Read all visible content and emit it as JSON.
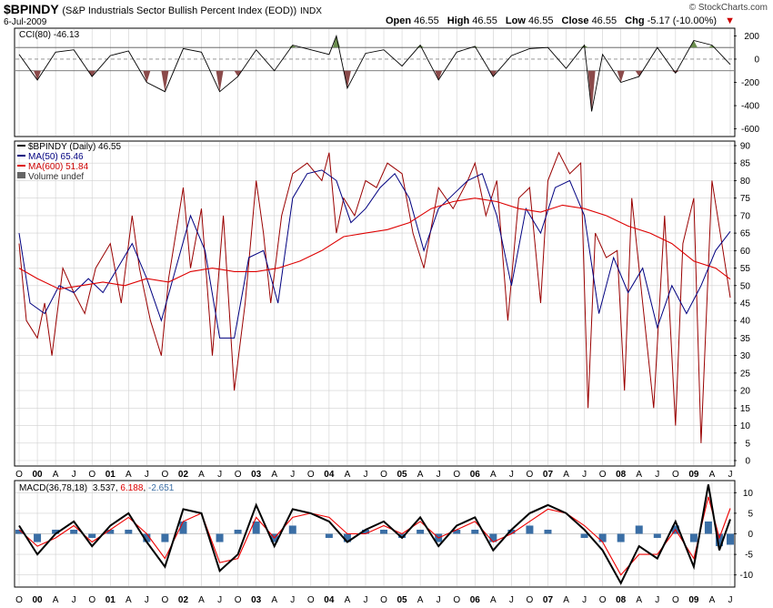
{
  "header": {
    "symbol": "$BPINDY",
    "description": "(S&P Industrials Sector Bullish Percent Index (EOD))",
    "exchange": "INDX",
    "date": "6-Jul-2009",
    "watermark": "© StockCharts.com",
    "open_label": "Open",
    "open": "46.55",
    "high_label": "High",
    "high": "46.55",
    "low_label": "Low",
    "low": "46.55",
    "close_label": "Close",
    "close": "46.55",
    "chg_label": "Chg",
    "chg": "-5.17 (-10.00%)",
    "chg_arrow": "▼"
  },
  "legends": {
    "cci": "CCI(80) -46.13",
    "price": "$BPINDY (Daily) 46.55",
    "ma50": "MA(50) 65.46",
    "ma600": "MA(600) 51.84",
    "volume": "Volume undef",
    "macd_name": "MACD(36,78,18)",
    "macd_val": "3.537",
    "macd_signal": "6.188",
    "macd_hist": "-2.651"
  },
  "colors": {
    "price": "#990000",
    "ma50": "#000080",
    "ma600": "#dd0000",
    "cci_line": "#000000",
    "cci_pos_fill": "#6b8e4e",
    "cci_neg_fill": "#8b4a4a",
    "macd_line": "#000000",
    "macd_signal": "#ee0000",
    "macd_hist": "#3a6ea5",
    "grid": "#d0d0d0"
  },
  "chart_data": [
    {
      "type": "line",
      "panel": "cci",
      "title": "CCI(80) -46.13",
      "y_ticks": [
        200,
        0,
        -200,
        -400,
        -600
      ],
      "ylim": [
        -650,
        250
      ],
      "reference_lines": [
        100,
        0,
        -100
      ],
      "x": [
        1999.75,
        2000.0,
        2000.25,
        2000.5,
        2000.75,
        2001.0,
        2001.25,
        2001.5,
        2001.75,
        2002.0,
        2002.25,
        2002.5,
        2002.75,
        2003.0,
        2003.25,
        2003.5,
        2003.75,
        2004.0,
        2004.1,
        2004.25,
        2004.5,
        2004.75,
        2005.0,
        2005.25,
        2005.5,
        2005.75,
        2006.0,
        2006.25,
        2006.5,
        2006.75,
        2007.0,
        2007.25,
        2007.5,
        2007.6,
        2007.75,
        2008.0,
        2008.25,
        2008.5,
        2008.75,
        2009.0,
        2009.25,
        2009.5
      ],
      "values": [
        40,
        -180,
        60,
        80,
        -150,
        30,
        70,
        -200,
        -280,
        90,
        60,
        -280,
        -150,
        80,
        -100,
        120,
        80,
        40,
        200,
        -250,
        50,
        80,
        -60,
        120,
        -180,
        60,
        110,
        -150,
        30,
        90,
        100,
        -80,
        120,
        -450,
        40,
        -200,
        -150,
        100,
        -120,
        160,
        120,
        -46
      ]
    },
    {
      "type": "line",
      "panel": "price",
      "title": "$BPINDY (Daily) 46.55",
      "y_ticks": [
        0,
        5,
        10,
        15,
        20,
        25,
        30,
        35,
        40,
        45,
        50,
        55,
        60,
        65,
        70,
        75,
        80,
        85,
        90
      ],
      "ylim": [
        0,
        90
      ],
      "x_tick_labels": [
        "O",
        "00",
        "A",
        "J",
        "O",
        "01",
        "A",
        "J",
        "O",
        "02",
        "A",
        "J",
        "O",
        "03",
        "A",
        "J",
        "O",
        "04",
        "A",
        "J",
        "O",
        "05",
        "A",
        "J",
        "O",
        "06",
        "A",
        "J",
        "O",
        "07",
        "A",
        "J",
        "O",
        "08",
        "A",
        "J",
        "O",
        "09",
        "A",
        "J"
      ],
      "xlim": [
        1999.7,
        2009.55
      ],
      "series": [
        {
          "name": "$BPINDY",
          "x": [
            1999.75,
            1999.85,
            2000.0,
            2000.1,
            2000.2,
            2000.35,
            2000.5,
            2000.65,
            2000.8,
            2001.0,
            2001.15,
            2001.3,
            2001.4,
            2001.55,
            2001.7,
            2001.8,
            2002.0,
            2002.1,
            2002.25,
            2002.4,
            2002.55,
            2002.7,
            2002.85,
            2003.0,
            2003.1,
            2003.2,
            2003.35,
            2003.5,
            2003.7,
            2003.9,
            2004.0,
            2004.1,
            2004.2,
            2004.35,
            2004.5,
            2004.65,
            2004.8,
            2005.0,
            2005.15,
            2005.3,
            2005.5,
            2005.7,
            2005.9,
            2006.0,
            2006.15,
            2006.3,
            2006.45,
            2006.6,
            2006.75,
            2006.9,
            2007.0,
            2007.15,
            2007.3,
            2007.45,
            2007.55,
            2007.65,
            2007.8,
            2007.95,
            2008.05,
            2008.15,
            2008.3,
            2008.45,
            2008.6,
            2008.75,
            2008.85,
            2009.0,
            2009.1,
            2009.25,
            2009.4,
            2009.5
          ],
          "values": [
            62,
            40,
            35,
            45,
            30,
            55,
            48,
            42,
            55,
            62,
            45,
            70,
            55,
            40,
            30,
            52,
            78,
            55,
            72,
            30,
            70,
            20,
            45,
            80,
            65,
            45,
            70,
            82,
            85,
            80,
            88,
            65,
            75,
            70,
            80,
            78,
            85,
            82,
            65,
            55,
            78,
            72,
            80,
            85,
            70,
            80,
            40,
            75,
            78,
            45,
            80,
            88,
            82,
            85,
            15,
            65,
            58,
            60,
            20,
            75,
            45,
            15,
            70,
            10,
            62,
            75,
            5,
            80,
            60,
            46.55
          ]
        },
        {
          "name": "MA(50)",
          "x": [
            1999.75,
            1999.9,
            2000.1,
            2000.3,
            2000.5,
            2000.7,
            2000.9,
            2001.1,
            2001.3,
            2001.5,
            2001.7,
            2001.9,
            2002.1,
            2002.3,
            2002.5,
            2002.7,
            2002.9,
            2003.1,
            2003.3,
            2003.5,
            2003.7,
            2003.9,
            2004.1,
            2004.3,
            2004.5,
            2004.7,
            2004.9,
            2005.1,
            2005.3,
            2005.5,
            2005.7,
            2005.9,
            2006.1,
            2006.3,
            2006.5,
            2006.7,
            2006.9,
            2007.1,
            2007.3,
            2007.5,
            2007.7,
            2007.9,
            2008.1,
            2008.3,
            2008.5,
            2008.7,
            2008.9,
            2009.1,
            2009.3,
            2009.5
          ],
          "values": [
            65,
            45,
            42,
            50,
            48,
            52,
            48,
            55,
            62,
            52,
            40,
            55,
            70,
            60,
            35,
            35,
            58,
            60,
            45,
            75,
            82,
            83,
            80,
            68,
            72,
            78,
            82,
            75,
            60,
            72,
            76,
            80,
            82,
            70,
            50,
            72,
            65,
            78,
            80,
            70,
            42,
            58,
            48,
            55,
            38,
            50,
            42,
            50,
            60,
            65.46
          ]
        },
        {
          "name": "MA(600)",
          "x": [
            1999.75,
            2000.0,
            2000.3,
            2000.6,
            2000.9,
            2001.2,
            2001.5,
            2001.8,
            2002.1,
            2002.4,
            2002.7,
            2003.0,
            2003.3,
            2003.6,
            2003.9,
            2004.2,
            2004.5,
            2004.8,
            2005.1,
            2005.4,
            2005.7,
            2006.0,
            2006.3,
            2006.6,
            2006.9,
            2007.2,
            2007.5,
            2007.8,
            2008.1,
            2008.4,
            2008.7,
            2009.0,
            2009.3,
            2009.5
          ],
          "values": [
            55,
            52,
            49,
            50,
            51,
            50,
            52,
            51,
            54,
            55,
            54,
            54,
            55,
            57,
            60,
            64,
            65,
            66,
            68,
            72,
            74,
            75,
            74,
            72,
            71,
            73,
            72,
            70,
            67,
            65,
            62,
            57,
            55,
            51.84
          ]
        }
      ]
    },
    {
      "type": "line",
      "panel": "macd",
      "title": "MACD(36,78,18)",
      "y_ticks": [
        10,
        5,
        0,
        -5,
        -10
      ],
      "ylim": [
        -12.5,
        12.5
      ],
      "x": [
        1999.75,
        2000.0,
        2000.25,
        2000.5,
        2000.75,
        2001.0,
        2001.25,
        2001.5,
        2001.75,
        2002.0,
        2002.25,
        2002.5,
        2002.75,
        2003.0,
        2003.25,
        2003.5,
        2003.75,
        2004.0,
        2004.25,
        2004.5,
        2004.75,
        2005.0,
        2005.25,
        2005.5,
        2005.75,
        2006.0,
        2006.25,
        2006.5,
        2006.75,
        2007.0,
        2007.25,
        2007.5,
        2007.75,
        2008.0,
        2008.25,
        2008.5,
        2008.75,
        2009.0,
        2009.2,
        2009.35,
        2009.5
      ],
      "series": [
        {
          "name": "MACD",
          "values": [
            2,
            -5,
            0,
            3,
            -3,
            2,
            5,
            -2,
            -8,
            6,
            5,
            -9,
            -5,
            7,
            -3,
            6,
            5,
            3,
            -2,
            1,
            3,
            -1,
            4,
            -3,
            2,
            4,
            -4,
            1,
            5,
            7,
            5,
            1,
            -4,
            -12,
            -3,
            -6,
            3,
            -8,
            12,
            -4,
            3.537
          ]
        },
        {
          "name": "Signal",
          "values": [
            1,
            -3,
            -1,
            2,
            -2,
            1,
            4,
            0,
            -6,
            3,
            5,
            -7,
            -6,
            4,
            -1,
            4,
            5,
            4,
            0,
            0,
            2,
            0,
            3,
            -1,
            1,
            3,
            -2,
            0,
            3,
            6,
            5,
            2,
            -2,
            -10,
            -5,
            -5,
            1,
            -6,
            9,
            -1,
            6.188
          ]
        },
        {
          "name": "Histogram",
          "values": [
            1,
            -2,
            1,
            1,
            -1,
            1,
            1,
            -2,
            -2,
            3,
            0,
            -2,
            1,
            3,
            -2,
            2,
            0,
            -1,
            -2,
            1,
            1,
            -1,
            1,
            -2,
            1,
            1,
            -2,
            1,
            2,
            1,
            0,
            -1,
            -2,
            -2,
            2,
            -1,
            2,
            -2,
            3,
            -3,
            -2.651
          ]
        }
      ]
    }
  ]
}
